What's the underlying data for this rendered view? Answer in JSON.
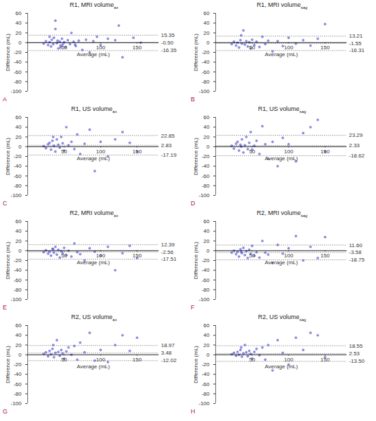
{
  "chart_data": [
    {
      "type": "scatter",
      "title": "R1, MRI volume",
      "title_subscript": "ax",
      "annotation": "A",
      "x_label": "Average (mL)",
      "y_label": "Difference (mL)",
      "color": "#3a3ad0",
      "marker": "circle",
      "xlim": [
        0,
        180
      ],
      "xticks": [
        50,
        100,
        150
      ],
      "ylim": [
        -100,
        60
      ],
      "yticks": [
        -100,
        -80,
        -60,
        -40,
        -20,
        0,
        20,
        40,
        60
      ],
      "baseline": 0,
      "reference_lines": [
        15.35,
        {
          "value": -0.5,
          "label": "-0.50"
        },
        -16.35
      ],
      "x": [
        22,
        25,
        28,
        30,
        32,
        33,
        35,
        36,
        38,
        40,
        41,
        42,
        44,
        45,
        47,
        48,
        50,
        52,
        55,
        58,
        60,
        63,
        66,
        70,
        75,
        80,
        85,
        90,
        100,
        110,
        120,
        130,
        145,
        155,
        38,
        45,
        30,
        65,
        125,
        95
      ],
      "values": [
        -2,
        3,
        -5,
        1,
        -8,
        6,
        -3,
        10,
        45,
        -1,
        4,
        -12,
        2,
        -6,
        8,
        -4,
        1,
        -9,
        5,
        -3,
        20,
        2,
        -7,
        4,
        -15,
        6,
        -20,
        3,
        -5,
        8,
        5,
        -30,
        10,
        0,
        28,
        -10,
        12,
        -4,
        35,
        12
      ]
    },
    {
      "type": "scatter",
      "title": "R1, MRI volume",
      "title_subscript": "sag",
      "annotation": "B",
      "x_label": "Average (mL)",
      "y_label": "Difference (mL)",
      "color": "#3a3ad0",
      "marker": "circle",
      "xlim": [
        0,
        180
      ],
      "xticks": [
        50,
        100,
        150
      ],
      "ylim": [
        -100,
        60
      ],
      "yticks": [
        -100,
        -80,
        -60,
        -40,
        -20,
        0,
        20,
        40,
        60
      ],
      "baseline": 0,
      "reference_lines": [
        13.21,
        -1.55,
        -16.31
      ],
      "x": [
        22,
        25,
        28,
        30,
        32,
        34,
        36,
        38,
        40,
        42,
        44,
        46,
        48,
        50,
        53,
        56,
        60,
        64,
        68,
        72,
        78,
        85,
        92,
        100,
        110,
        120,
        130,
        140,
        150,
        35
      ],
      "values": [
        -3,
        2,
        -6,
        0,
        -10,
        5,
        -2,
        25,
        -4,
        3,
        -8,
        1,
        -12,
        6,
        -5,
        2,
        -9,
        12,
        -3,
        4,
        -18,
        3,
        -7,
        10,
        -2,
        5,
        -6,
        8,
        38,
        15
      ]
    },
    {
      "type": "scatter",
      "title": "R1, US volume",
      "title_subscript": "ax",
      "annotation": "C",
      "x_label": "Average (mL)",
      "y_label": "Difference (mL)",
      "color": "#3a3ad0",
      "marker": "circle",
      "xlim": [
        0,
        180
      ],
      "xticks": [
        50,
        100,
        150
      ],
      "ylim": [
        -100,
        60
      ],
      "yticks": [
        -100,
        -80,
        -60,
        -40,
        -20,
        0,
        20,
        40,
        60
      ],
      "baseline": 0,
      "reference_lines": [
        22.85,
        2.83,
        -17.19
      ],
      "x": [
        22,
        25,
        28,
        30,
        32,
        34,
        36,
        38,
        40,
        42,
        44,
        46,
        48,
        50,
        53,
        56,
        60,
        64,
        68,
        72,
        78,
        85,
        92,
        100,
        110,
        120,
        130,
        140,
        150,
        35
      ],
      "values": [
        1,
        -3,
        5,
        8,
        -6,
        12,
        2,
        -10,
        15,
        4,
        -2,
        20,
        7,
        -8,
        40,
        3,
        10,
        -5,
        25,
        -15,
        6,
        35,
        -50,
        10,
        -20,
        15,
        30,
        8,
        -10,
        20
      ]
    },
    {
      "type": "scatter",
      "title": "R1, US volume",
      "title_subscript": "sag",
      "annotation": "D",
      "x_label": "Average (mL)",
      "y_label": "Difference (mL)",
      "color": "#3a3ad0",
      "marker": "circle",
      "xlim": [
        0,
        180
      ],
      "xticks": [
        50,
        100,
        150
      ],
      "ylim": [
        -100,
        60
      ],
      "yticks": [
        -100,
        -80,
        -60,
        -40,
        -20,
        0,
        20,
        40,
        60
      ],
      "baseline": 0,
      "reference_lines": [
        23.29,
        2.33,
        -18.62
      ],
      "x": [
        22,
        25,
        28,
        30,
        32,
        34,
        36,
        38,
        40,
        42,
        44,
        46,
        48,
        50,
        53,
        56,
        60,
        64,
        68,
        72,
        78,
        85,
        92,
        100,
        110,
        120,
        130,
        140,
        150,
        35
      ],
      "values": [
        2,
        -4,
        6,
        10,
        -8,
        4,
        15,
        -12,
        3,
        20,
        -5,
        8,
        30,
        -6,
        2,
        12,
        -15,
        42,
        5,
        -25,
        10,
        -40,
        18,
        5,
        -30,
        28,
        40,
        55,
        -10,
        0
      ]
    },
    {
      "type": "scatter",
      "title": "R2, MRI volume",
      "title_subscript": "ax",
      "annotation": "E",
      "x_label": "Average (mL)",
      "y_label": "Difference (mL)",
      "color": "#3a3ad0",
      "marker": "circle",
      "xlim": [
        0,
        180
      ],
      "xticks": [
        50,
        100,
        150
      ],
      "ylim": [
        -100,
        60
      ],
      "yticks": [
        -100,
        -80,
        -60,
        -40,
        -20,
        0,
        20,
        40,
        60
      ],
      "baseline": 0,
      "reference_lines": [
        12.39,
        -2.56,
        -17.51
      ],
      "x": [
        22,
        25,
        28,
        30,
        32,
        34,
        36,
        38,
        40,
        42,
        44,
        46,
        48,
        50,
        53,
        56,
        60,
        64,
        68,
        72,
        78,
        85,
        92,
        100,
        110,
        120,
        130,
        140,
        150,
        35
      ],
      "values": [
        -3,
        1,
        -6,
        -2,
        -10,
        4,
        -4,
        8,
        -8,
        2,
        -14,
        -1,
        -5,
        6,
        -9,
        0,
        -12,
        15,
        -3,
        -7,
        -20,
        5,
        -2,
        -10,
        8,
        -40,
        -5,
        10,
        -15,
        3
      ]
    },
    {
      "type": "scatter",
      "title": "R2, MRI volume",
      "title_subscript": "sag",
      "annotation": "F",
      "x_label": "Average (mL)",
      "y_label": "Difference (mL)",
      "color": "#3a3ad0",
      "marker": "circle",
      "xlim": [
        0,
        180
      ],
      "xticks": [
        50,
        100,
        150
      ],
      "ylim": [
        -100,
        60
      ],
      "yticks": [
        -100,
        -80,
        -60,
        -40,
        -20,
        0,
        20,
        40,
        60
      ],
      "baseline": 0,
      "reference_lines": [
        {
          "value": 11.6,
          "label": "11.60"
        },
        -3.58,
        -18.75
      ],
      "x": [
        22,
        25,
        28,
        30,
        32,
        34,
        36,
        38,
        40,
        42,
        44,
        46,
        48,
        50,
        53,
        56,
        60,
        64,
        68,
        72,
        78,
        85,
        92,
        100,
        110,
        120,
        130,
        140,
        150,
        35
      ],
      "values": [
        -4,
        0,
        -7,
        -2,
        -12,
        3,
        -5,
        6,
        -9,
        -1,
        -15,
        2,
        -6,
        10,
        -10,
        -3,
        -14,
        20,
        -4,
        -8,
        -25,
        12,
        -6,
        5,
        30,
        -20,
        8,
        -15,
        28,
        -2
      ]
    },
    {
      "type": "scatter",
      "title": "R2, US volume",
      "title_subscript": "ax",
      "annotation": "G",
      "x_label": "Average (mL)",
      "y_label": "Difference (mL)",
      "color": "#3a3ad0",
      "marker": "circle",
      "xlim": [
        0,
        180
      ],
      "xticks": [
        50,
        100,
        150
      ],
      "ylim": [
        -100,
        60
      ],
      "yticks": [
        -100,
        -80,
        -60,
        -40,
        -20,
        0,
        20,
        40,
        60
      ],
      "baseline": 0,
      "reference_lines": [
        18.97,
        3.48,
        -12.02
      ],
      "x": [
        22,
        25,
        28,
        30,
        32,
        34,
        36,
        38,
        40,
        42,
        44,
        46,
        48,
        50,
        53,
        56,
        60,
        64,
        68,
        72,
        78,
        85,
        92,
        100,
        110,
        120,
        130,
        140,
        150,
        35
      ],
      "values": [
        2,
        5,
        -3,
        8,
        1,
        12,
        -5,
        4,
        30,
        6,
        -2,
        10,
        3,
        -8,
        7,
        15,
        0,
        18,
        -10,
        25,
        5,
        45,
        -12,
        10,
        -15,
        20,
        40,
        8,
        35,
        20
      ]
    },
    {
      "type": "scatter",
      "title": "R2, US volume",
      "title_subscript": "sag",
      "annotation": "H",
      "x_label": "Average (mL)",
      "y_label": "Difference (mL)",
      "color": "#3a3ad0",
      "marker": "circle",
      "xlim": [
        0,
        180
      ],
      "xticks": [
        50,
        100,
        150
      ],
      "ylim": [
        -100,
        60
      ],
      "yticks": [
        -100,
        -80,
        -60,
        -40,
        -20,
        0,
        20,
        40,
        60
      ],
      "baseline": 0,
      "reference_lines": [
        18.55,
        2.53,
        {
          "value": -13.5,
          "label": "-13.50"
        }
      ],
      "x": [
        22,
        25,
        28,
        30,
        32,
        34,
        36,
        38,
        40,
        42,
        44,
        46,
        48,
        50,
        53,
        56,
        60,
        64,
        68,
        72,
        78,
        85,
        92,
        100,
        110,
        120,
        130,
        140,
        150,
        35
      ],
      "values": [
        1,
        4,
        -2,
        6,
        0,
        10,
        -4,
        3,
        20,
        5,
        -3,
        8,
        2,
        -8,
        6,
        12,
        -1,
        15,
        -10,
        20,
        -32,
        30,
        4,
        -20,
        35,
        10,
        45,
        40,
        -5,
        15
      ]
    }
  ]
}
